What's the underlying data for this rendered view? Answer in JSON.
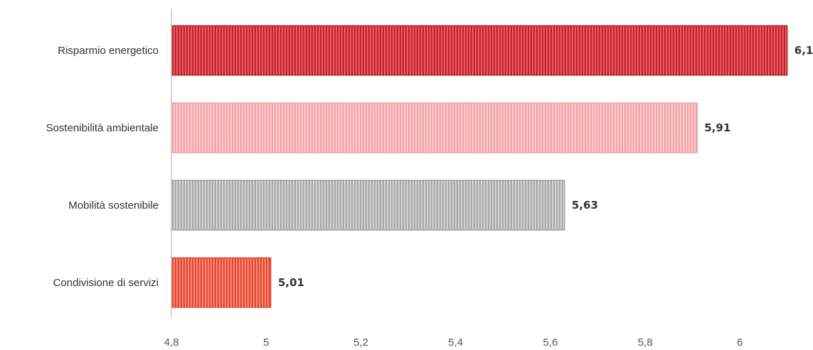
{
  "chart_data": {
    "type": "bar",
    "orientation": "horizontal",
    "categories": [
      "Risparmio energetico",
      "Sostenibilità ambientale",
      "Mobilità sostenibile",
      "Condivisione di servizi"
    ],
    "values": [
      6.1,
      5.91,
      5.63,
      5.01
    ],
    "value_labels": [
      "6,1",
      "5,91",
      "5,63",
      "5,01"
    ],
    "xlim": [
      4.8,
      6.1
    ],
    "x_ticks": [
      4.8,
      5,
      5.2,
      5.4,
      5.6,
      5.8,
      6
    ],
    "x_tick_labels": [
      "4,8",
      "5",
      "5,2",
      "5,4",
      "5,6",
      "5,8",
      "6"
    ],
    "grid": false,
    "legend": "none",
    "bar_colors": [
      "#c8202a",
      "#f4a3a8",
      "#a8a8a8",
      "#e8452f"
    ],
    "bar_stripe_colors": [
      "#ea6b72",
      "#fbd6d8",
      "#dcdcdc",
      "#f79a86"
    ],
    "bar_edge_colors": [
      "#9e141c",
      "#ec8a90",
      "#888888",
      "#c93a24"
    ]
  }
}
